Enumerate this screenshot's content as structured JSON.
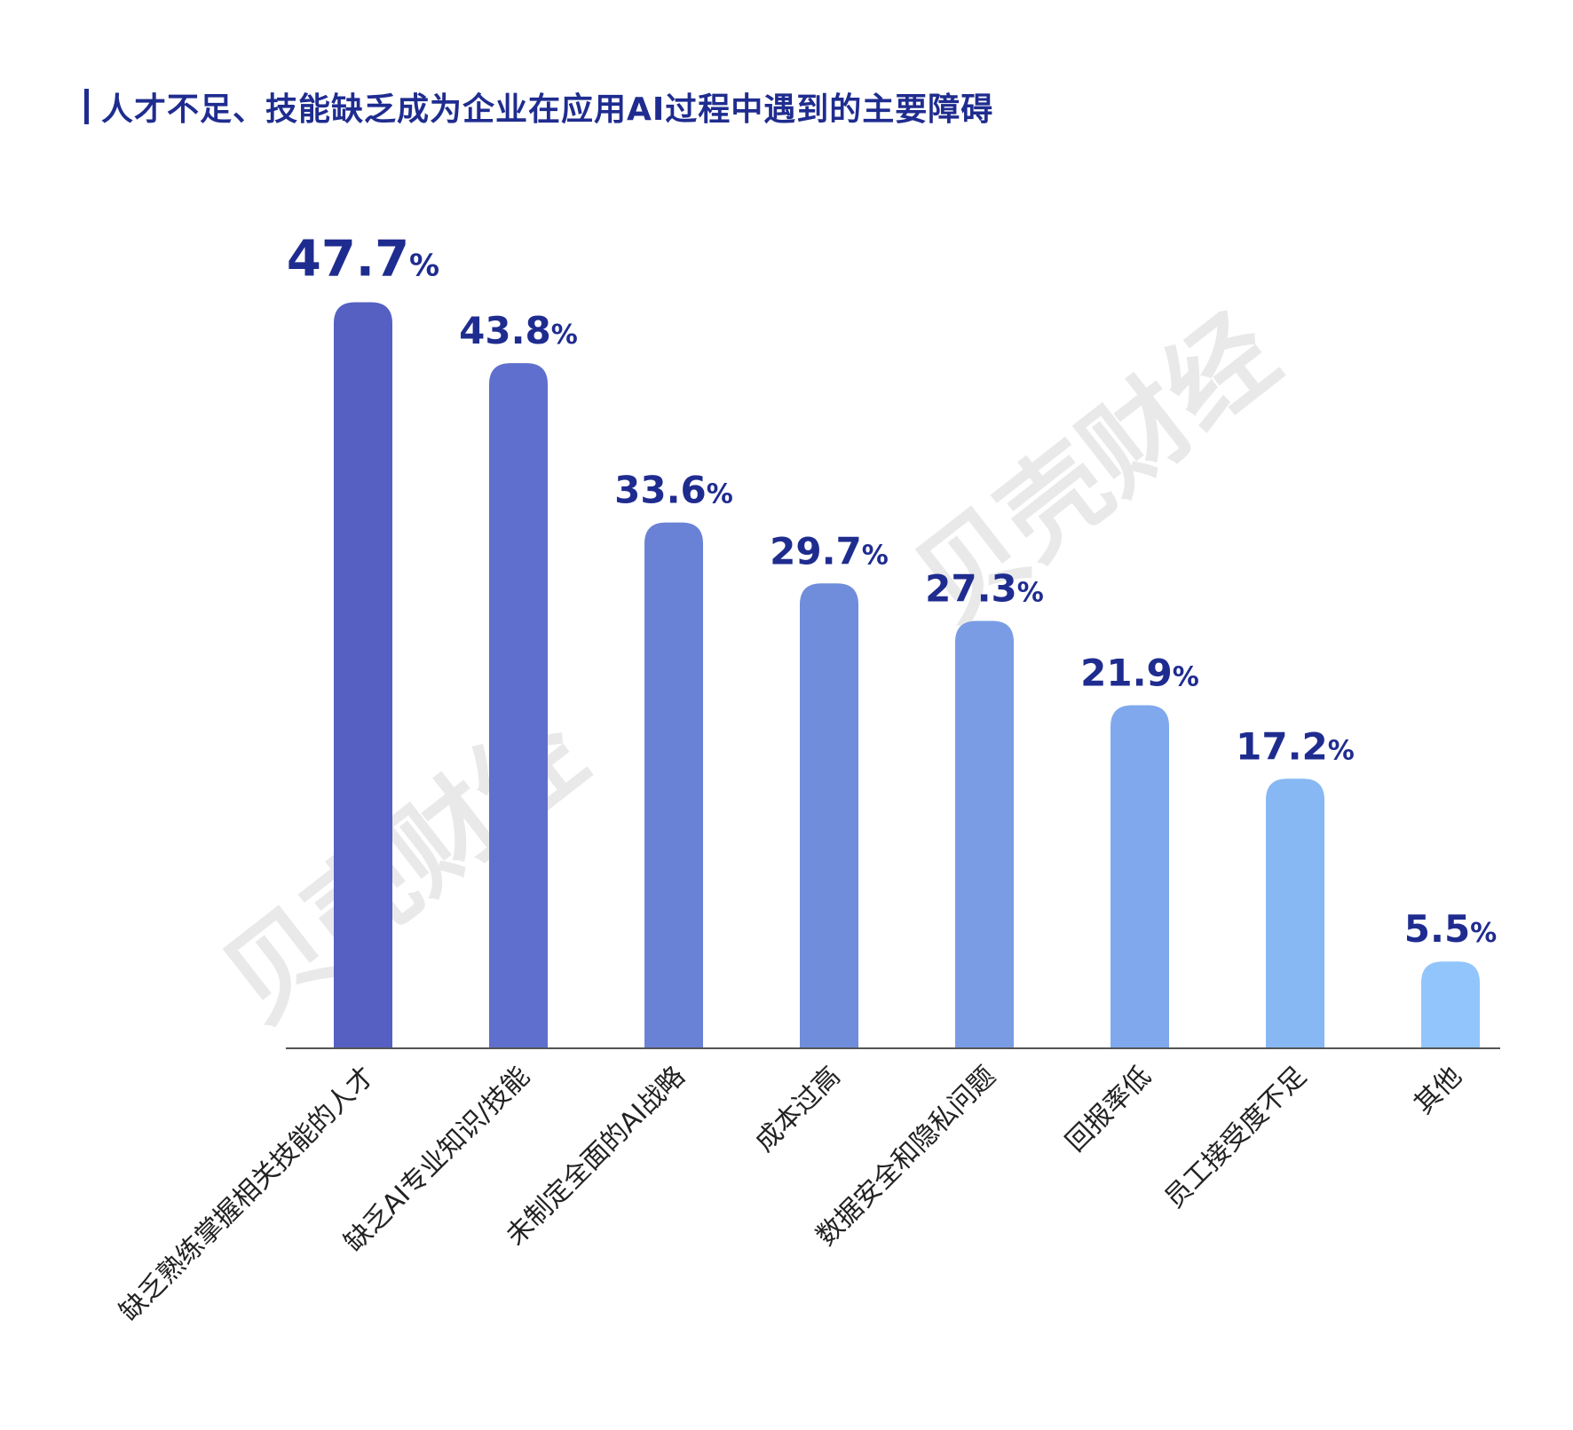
{
  "title": "人才不足、技能缺乏成为企业在应用AI过程中遇到的主要障碍",
  "watermark": "贝壳财经",
  "colors": {
    "title": "#1f2c8f",
    "value_label": "#1f2c8f",
    "axis": "#555555",
    "bars": [
      "#5560c2",
      "#5f6fcd",
      "#6a82d6",
      "#6f8ddb",
      "#7a9ce4",
      "#7fa9ec",
      "#87b8f3",
      "#92c5fb"
    ]
  },
  "chart_data": {
    "type": "bar",
    "categories": [
      "缺乏熟练掌握相关技能的人才",
      "缺乏AI专业知识/技能",
      "未制定全面的AI战略",
      "成本过高",
      "数据安全和隐私问题",
      "回报率低",
      "员工接受度不足",
      "其他"
    ],
    "values": [
      47.7,
      43.8,
      33.6,
      29.7,
      27.3,
      21.9,
      17.2,
      5.5
    ],
    "value_labels": [
      "47.7",
      "43.8",
      "33.6",
      "29.7",
      "27.3",
      "21.9",
      "17.2",
      "5.5"
    ],
    "unit": "%",
    "ylim": [
      0,
      50
    ],
    "grid": false,
    "legend": "none"
  }
}
